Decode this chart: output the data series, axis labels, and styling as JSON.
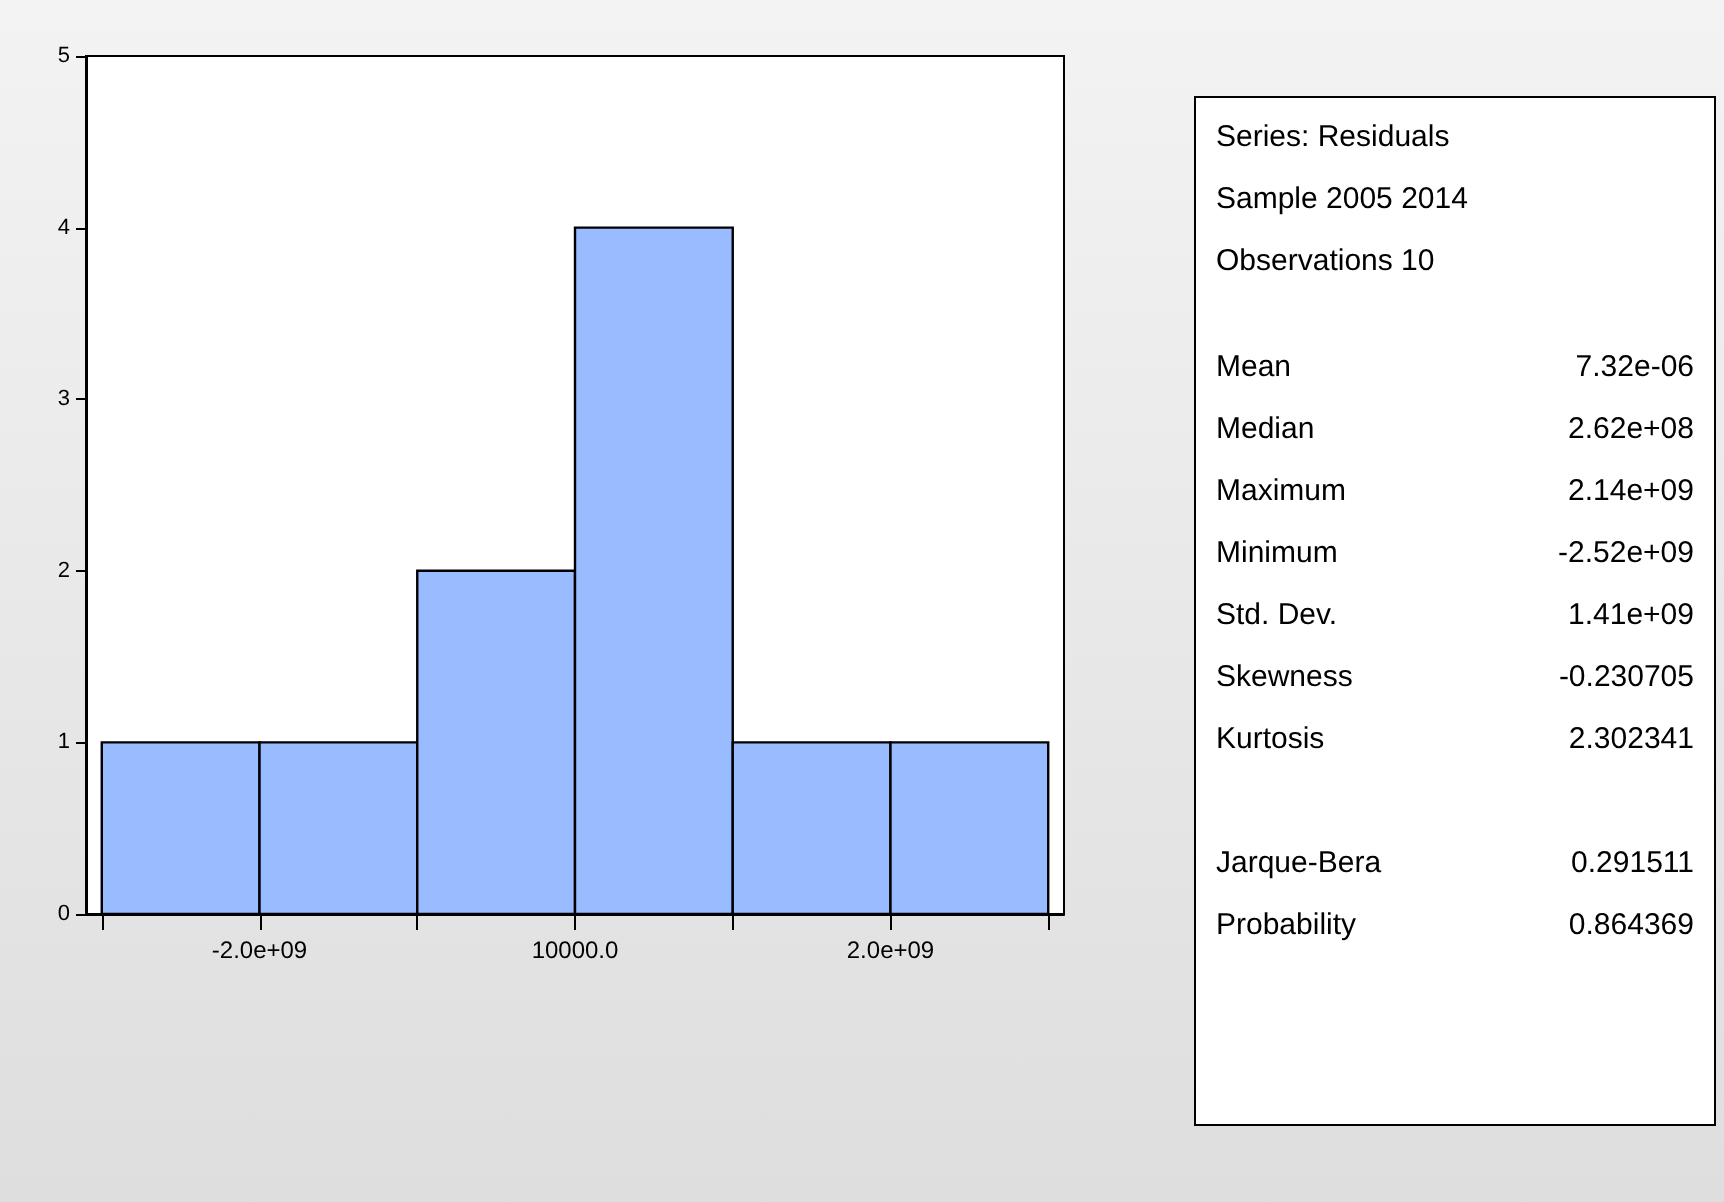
{
  "chart_data": [
    {
      "type": "histogram",
      "bins": [
        -3000000000,
        -2000000000,
        -1000000000,
        0,
        1000000000,
        2000000000,
        3000000000
      ],
      "values": [
        1,
        1,
        2,
        4,
        1,
        1
      ],
      "color": "#99bbff",
      "xlim": [
        -3100000000,
        3100000000
      ],
      "xticks": [
        {
          "value": -3000000000,
          "label": null
        },
        {
          "value": -2000000000,
          "label": "-2.0e+09"
        },
        {
          "value": -1000000000,
          "label": null
        },
        {
          "value": 10000,
          "label": "10000.0"
        },
        {
          "value": 1000000000,
          "label": null
        },
        {
          "value": 2000000000,
          "label": "2.0e+09"
        },
        {
          "value": 3000000000,
          "label": null
        }
      ],
      "ylim": [
        0,
        5
      ],
      "yticks": [
        0,
        1,
        2,
        3,
        4,
        5
      ],
      "grid": false
    },
    {
      "type": "other",
      "annotations": [
        "Series: Residuals",
        "Sample 2005 2014",
        "Observations 10"
      ],
      "categories": [
        "Mean",
        "Median",
        "Maximum",
        "Minimum",
        "Std. Dev.",
        "Skewness",
        "Kurtosis",
        null,
        "Jarque-Bera",
        "Probability"
      ],
      "value_labels": [
        "7.32e-06",
        "2.62e+08",
        "2.14e+09",
        "-2.52e+09",
        "1.41e+09",
        "-0.230705",
        "2.302341",
        null,
        "0.291511",
        "0.864369"
      ]
    }
  ]
}
